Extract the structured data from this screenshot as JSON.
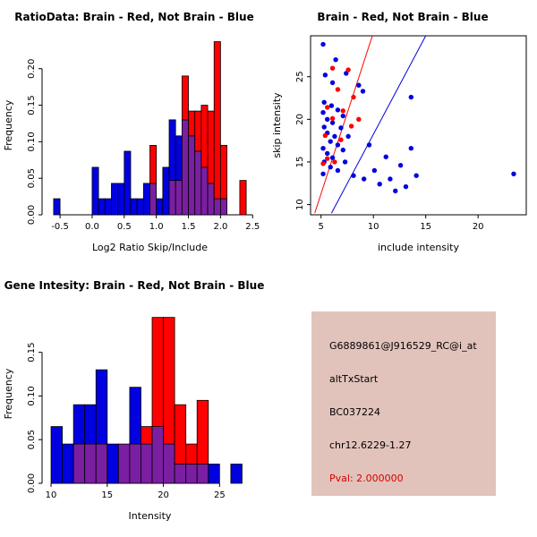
{
  "figure": {
    "background": "#FFFFFF"
  },
  "colors": {
    "brain_red": "#FF0000",
    "not_brain_blue": "#0000E0",
    "overlap_purple": "#7A1FA2",
    "axis_black": "#000000",
    "info_box_bg": "#E2C3BB",
    "pval_red": "#D40000"
  },
  "chart_data": [
    {
      "type": "bar",
      "variant": "overlapping-histogram",
      "title": "RatioData: Brain - Red, Not Brain - Blue",
      "xlabel": "Log2 Ratio Skip/Include",
      "ylabel": "Frequency",
      "xlim": [
        -0.78,
        2.58
      ],
      "ylim": [
        0,
        0.245
      ],
      "xticks": [
        -0.5,
        0,
        0.5,
        1,
        1.5,
        2,
        2.5
      ],
      "xtick_labels": [
        "-0.5",
        "0.0",
        "0.5",
        "1.0",
        "1.5",
        "2.0",
        "2.5"
      ],
      "yticks": [
        0,
        0.05,
        0.1,
        0.15,
        0.2
      ],
      "ytick_labels": [
        "0.00",
        "0.05",
        "0.10",
        "0.15",
        "0.20"
      ],
      "grid": false,
      "legend": "none",
      "bin_start": -0.6,
      "bin_width": 0.1,
      "series": [
        {
          "name": "Not Brain",
          "color_key": "not_brain_blue",
          "values": [
            0.022,
            0,
            0,
            0,
            0,
            0,
            0.065,
            0.022,
            0.022,
            0.043,
            0.043,
            0.087,
            0.022,
            0.022,
            0.043,
            0.043,
            0.022,
            0.065,
            0.13,
            0.108,
            0.13,
            0.108,
            0.087,
            0.065,
            0.043,
            0.022,
            0.022,
            0,
            0,
            0
          ]
        },
        {
          "name": "Brain",
          "color_key": "brain_red",
          "values": [
            0,
            0,
            0,
            0,
            0,
            0,
            0,
            0,
            0,
            0,
            0,
            0,
            0,
            0,
            0,
            0.095,
            0,
            0,
            0.047,
            0.047,
            0.19,
            0.142,
            0.142,
            0.15,
            0.142,
            0.237,
            0.095,
            0,
            0,
            0.047
          ]
        }
      ]
    },
    {
      "type": "scatter",
      "title": "Brain - Red, Not Brain - Blue",
      "xlabel": "include intensity",
      "ylabel": "skip intensity",
      "xlim": [
        4,
        24.6
      ],
      "ylim": [
        8.8,
        29.8
      ],
      "xticks": [
        5,
        10,
        15,
        20
      ],
      "xtick_labels": [
        "5",
        "10",
        "15",
        "20"
      ],
      "yticks": [
        10,
        15,
        20,
        25
      ],
      "ytick_labels": [
        "10",
        "15",
        "20",
        "25"
      ],
      "grid": false,
      "legend": "none",
      "series": [
        {
          "name": "Not Brain",
          "color_key": "not_brain_blue",
          "points": [
            [
              5.2,
              28.8
            ],
            [
              6.4,
              27.0
            ],
            [
              5.4,
              25.2
            ],
            [
              7.4,
              25.4
            ],
            [
              6.1,
              24.3
            ],
            [
              8.6,
              24.0
            ],
            [
              9.0,
              23.3
            ],
            [
              13.6,
              22.6
            ],
            [
              5.3,
              22.0
            ],
            [
              6.0,
              21.6
            ],
            [
              6.6,
              21.1
            ],
            [
              5.2,
              20.8
            ],
            [
              7.1,
              20.4
            ],
            [
              5.6,
              20.0
            ],
            [
              6.1,
              19.6
            ],
            [
              5.3,
              19.1
            ],
            [
              6.9,
              19.0
            ],
            [
              5.6,
              18.4
            ],
            [
              6.3,
              18.0
            ],
            [
              7.6,
              18.0
            ],
            [
              5.9,
              17.4
            ],
            [
              6.6,
              17.0
            ],
            [
              9.6,
              17.0
            ],
            [
              5.2,
              16.6
            ],
            [
              7.1,
              16.4
            ],
            [
              5.6,
              16.0
            ],
            [
              11.2,
              15.6
            ],
            [
              6.1,
              15.5
            ],
            [
              5.3,
              15.0
            ],
            [
              7.3,
              15.0
            ],
            [
              12.6,
              14.6
            ],
            [
              5.9,
              14.4
            ],
            [
              10.1,
              14.0
            ],
            [
              6.6,
              14.0
            ],
            [
              5.2,
              13.6
            ],
            [
              8.1,
              13.4
            ],
            [
              23.4,
              13.6
            ],
            [
              9.1,
              13.0
            ],
            [
              11.6,
              13.0
            ],
            [
              10.6,
              12.4
            ],
            [
              13.1,
              12.1
            ],
            [
              12.1,
              11.6
            ],
            [
              13.6,
              16.6
            ],
            [
              14.1,
              13.4
            ]
          ]
        },
        {
          "name": "Brain",
          "color_key": "brain_red",
          "points": [
            [
              6.1,
              26.0
            ],
            [
              7.6,
              25.8
            ],
            [
              6.6,
              23.5
            ],
            [
              8.1,
              22.6
            ],
            [
              5.6,
              21.4
            ],
            [
              7.1,
              21.0
            ],
            [
              6.1,
              20.1
            ],
            [
              8.6,
              20.0
            ],
            [
              7.9,
              19.2
            ],
            [
              5.4,
              18.1
            ],
            [
              6.9,
              17.6
            ],
            [
              5.6,
              15.4
            ],
            [
              6.3,
              15.0
            ],
            [
              5.2,
              14.8
            ]
          ]
        }
      ],
      "lines": [
        {
          "name": "brain-fit-line",
          "color_key": "brain_red",
          "x1": 4.4,
          "y1": 9.0,
          "x2": 9.9,
          "y2": 29.8
        },
        {
          "name": "not-brain-fit-line",
          "color_key": "not_brain_blue",
          "x1": 6.0,
          "y1": 9.0,
          "x2": 15.0,
          "y2": 29.8
        }
      ]
    },
    {
      "type": "bar",
      "variant": "overlapping-histogram",
      "title": "Gene Intesity: Brain - Red, Not Brain - Blue",
      "xlabel": "Intensity",
      "ylabel": "Frequency",
      "xlim": [
        9.2,
        28.4
      ],
      "ylim": [
        0,
        0.205
      ],
      "xticks": [
        10,
        15,
        20,
        25
      ],
      "xtick_labels": [
        "10",
        "15",
        "20",
        "25"
      ],
      "yticks": [
        0,
        0.05,
        0.1,
        0.15
      ],
      "ytick_labels": [
        "0.00",
        "0.05",
        "0.10",
        "0.15"
      ],
      "grid": false,
      "legend": "none",
      "bin_start": 10,
      "bin_width": 1,
      "series": [
        {
          "name": "Not Brain",
          "color_key": "not_brain_blue",
          "values": [
            0.065,
            0.045,
            0.09,
            0.09,
            0.13,
            0.045,
            0.045,
            0.11,
            0.045,
            0.065,
            0.045,
            0.022,
            0.022,
            0.022,
            0.022,
            0,
            0.022
          ]
        },
        {
          "name": "Brain",
          "color_key": "brain_red",
          "values": [
            0,
            0,
            0.045,
            0.045,
            0.045,
            0,
            0.045,
            0.045,
            0.065,
            0.19,
            0.19,
            0.09,
            0.045,
            0.095,
            0,
            0,
            0
          ]
        }
      ]
    }
  ],
  "info_box": {
    "lines": [
      "G6889861@J916529_RC@i_at",
      "altTxStart",
      "BC037224",
      "chr12.6229-1.27"
    ],
    "pval": "Pval: 2.000000"
  }
}
